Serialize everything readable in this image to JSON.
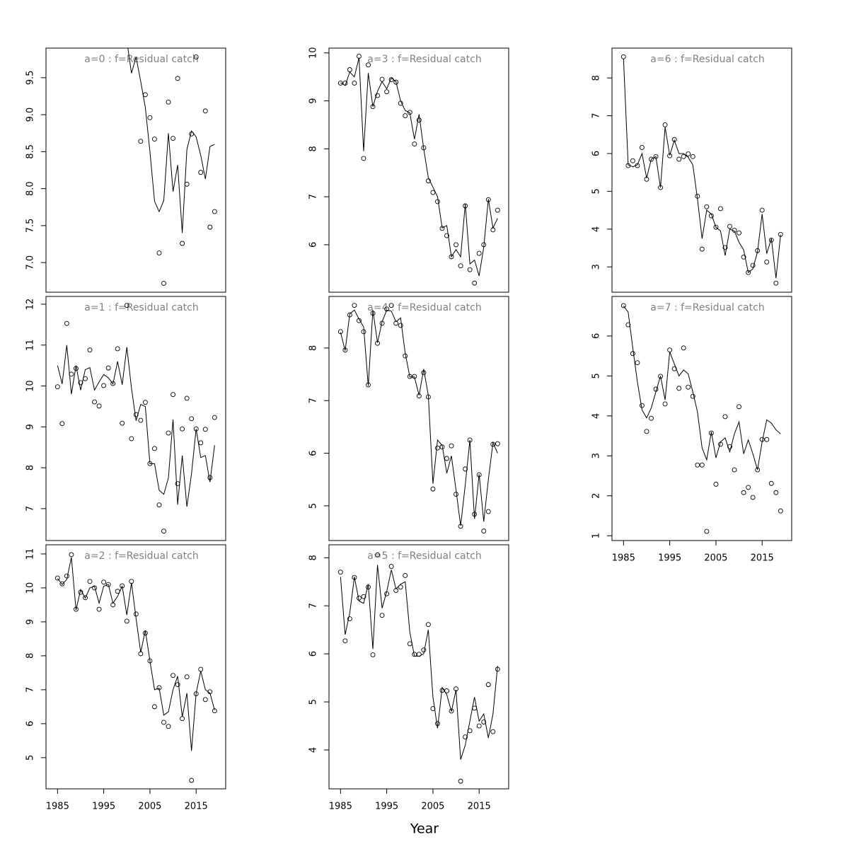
{
  "xlabel": "Year",
  "chart_data": [
    {
      "type": "line",
      "title": "a=0  :  f=Residual catch",
      "xlim": [
        1982.5,
        2021.4
      ],
      "ylim": [
        6.6,
        9.9
      ],
      "yticks": [
        {
          "value": 7,
          "label": "7.0"
        },
        {
          "value": 7.5,
          "label": "7.5"
        },
        {
          "value": 8,
          "label": "8.0"
        },
        {
          "value": 8.5,
          "label": "8.5"
        },
        {
          "value": 9,
          "label": "9.0"
        },
        {
          "value": 9.5,
          "label": "9.5"
        }
      ],
      "x": [
        1985,
        1986,
        1987,
        1988,
        1989,
        1990,
        1991,
        1992,
        1993,
        1994,
        1995,
        1996,
        1997,
        1998,
        1999,
        2000,
        2001,
        2002,
        2003,
        2004,
        2005,
        2006,
        2007,
        2008,
        2009,
        2010,
        2011,
        2012,
        2013,
        2014,
        2015,
        2016,
        2017,
        2018,
        2019
      ],
      "series": [
        {
          "type": "points",
          "color": "#000000",
          "values": [
            null,
            null,
            null,
            null,
            null,
            null,
            null,
            null,
            null,
            null,
            null,
            null,
            null,
            null,
            null,
            null,
            null,
            null,
            8.64,
            9.27,
            8.96,
            8.67,
            7.13,
            6.72,
            9.17,
            8.68,
            9.49,
            7.26,
            8.06,
            8.74,
            9.78,
            8.22,
            9.05,
            7.48,
            7.69
          ]
        },
        {
          "type": "line",
          "color": "#000000",
          "values": [
            null,
            null,
            null,
            null,
            null,
            null,
            null,
            null,
            null,
            null,
            null,
            null,
            null,
            null,
            null,
            10.0,
            9.56,
            9.78,
            9.45,
            9.1,
            8.5,
            7.83,
            7.69,
            7.84,
            8.75,
            7.96,
            8.32,
            7.4,
            8.53,
            8.78,
            8.7,
            8.45,
            8.13,
            8.57,
            8.6
          ]
        }
      ]
    },
    {
      "type": "line",
      "title": "a=1  :  f=Residual catch",
      "xlim": [
        1982.5,
        2021.4
      ],
      "ylim": [
        6.22,
        12.19
      ],
      "yticks": [
        7,
        8,
        9,
        10,
        11,
        12
      ],
      "x": [
        1985,
        1986,
        1987,
        1988,
        1989,
        1990,
        1991,
        1992,
        1993,
        1994,
        1995,
        1996,
        1997,
        1998,
        1999,
        2000,
        2001,
        2002,
        2003,
        2004,
        2005,
        2006,
        2007,
        2008,
        2009,
        2010,
        2011,
        2012,
        2013,
        2014,
        2015,
        2016,
        2017,
        2018,
        2019
      ],
      "series": [
        {
          "type": "points",
          "color": "#000000",
          "values": [
            9.98,
            9.08,
            11.53,
            10.29,
            10.43,
            10.08,
            10.18,
            10.88,
            9.61,
            9.51,
            10.01,
            10.44,
            10.06,
            10.91,
            9.09,
            11.97,
            8.71,
            9.3,
            9.16,
            9.6,
            8.1,
            8.47,
            7.09,
            6.45,
            8.85,
            9.79,
            7.61,
            8.95,
            9.7,
            9.2,
            8.95,
            8.61,
            8.94,
            7.76,
            9.23
          ]
        },
        {
          "type": "line",
          "color": "#000000",
          "values": [
            10.5,
            10.05,
            11.0,
            9.8,
            10.5,
            9.9,
            10.4,
            10.45,
            9.9,
            10.1,
            10.28,
            10.2,
            10.05,
            10.6,
            10.03,
            10.95,
            9.95,
            9.15,
            9.55,
            9.5,
            8.1,
            8.1,
            7.45,
            7.35,
            7.75,
            9.18,
            7.1,
            8.3,
            7.05,
            7.85,
            8.95,
            8.25,
            8.3,
            7.65,
            8.55
          ]
        }
      ]
    },
    {
      "type": "line",
      "title": "a=2  :  f=Residual catch",
      "xlim": [
        1982.5,
        2021.4
      ],
      "ylim": [
        4.08,
        11.27
      ],
      "yticks": [
        5,
        6,
        7,
        8,
        9,
        10,
        11
      ],
      "xticks": [
        1985,
        1995,
        2005,
        2015
      ],
      "x": [
        1985,
        1986,
        1987,
        1988,
        1989,
        1990,
        1991,
        1992,
        1993,
        1994,
        1995,
        1996,
        1997,
        1998,
        1999,
        2000,
        2001,
        2002,
        2003,
        2004,
        2005,
        2006,
        2007,
        2008,
        2009,
        2010,
        2011,
        2012,
        2013,
        2014,
        2015,
        2016,
        2017,
        2018,
        2019
      ],
      "series": [
        {
          "type": "points",
          "color": "#000000",
          "values": [
            10.29,
            10.12,
            10.35,
            10.98,
            9.37,
            9.87,
            9.71,
            10.19,
            10.0,
            9.37,
            10.17,
            10.1,
            9.5,
            9.9,
            10.06,
            9.02,
            10.19,
            9.23,
            8.06,
            8.67,
            7.85,
            6.5,
            7.06,
            6.04,
            5.92,
            7.42,
            7.15,
            6.15,
            7.38,
            4.33,
            6.88,
            7.6,
            6.71,
            6.94,
            6.38
          ]
        },
        {
          "type": "line",
          "color": "#000000",
          "values": [
            10.28,
            10.1,
            10.25,
            10.9,
            9.35,
            9.95,
            9.7,
            10.0,
            10.05,
            9.55,
            10.05,
            10.1,
            9.55,
            9.75,
            10.05,
            9.2,
            10.15,
            9.1,
            8.1,
            8.75,
            7.85,
            7.0,
            7.05,
            6.25,
            6.35,
            7.0,
            7.4,
            6.2,
            6.9,
            5.2,
            6.9,
            7.55,
            7.0,
            6.9,
            6.4
          ]
        }
      ]
    },
    {
      "type": "line",
      "title": "a=3  :  f=Residual catch",
      "xlim": [
        1982.5,
        2021.4
      ],
      "ylim": [
        5.01,
        10.1
      ],
      "yticks": [
        6,
        7,
        8,
        9,
        10
      ],
      "x": [
        1985,
        1986,
        1987,
        1988,
        1989,
        1990,
        1991,
        1992,
        1993,
        1994,
        1995,
        1996,
        1997,
        1998,
        1999,
        2000,
        2001,
        2002,
        2003,
        2004,
        2005,
        2006,
        2007,
        2008,
        2009,
        2010,
        2011,
        2012,
        2013,
        2014,
        2015,
        2016,
        2017,
        2018,
        2019
      ],
      "series": [
        {
          "type": "points",
          "color": "#000000",
          "values": [
            9.37,
            9.37,
            9.65,
            9.37,
            9.93,
            7.8,
            9.75,
            8.88,
            9.11,
            9.45,
            9.19,
            9.44,
            9.39,
            8.95,
            8.69,
            8.76,
            8.1,
            8.6,
            8.02,
            7.33,
            7.09,
            6.9,
            6.34,
            6.19,
            5.75,
            6.0,
            5.56,
            6.81,
            5.48,
            5.2,
            5.82,
            6.0,
            6.94,
            6.31,
            6.72
          ]
        },
        {
          "type": "line",
          "color": "#000000",
          "values": [
            9.38,
            9.32,
            9.6,
            9.5,
            9.9,
            7.95,
            9.58,
            8.88,
            9.2,
            9.4,
            9.25,
            9.48,
            9.4,
            9.0,
            8.8,
            8.75,
            8.2,
            8.72,
            8.0,
            7.4,
            7.2,
            7.0,
            6.35,
            6.4,
            5.75,
            5.9,
            5.75,
            6.85,
            5.6,
            5.68,
            5.35,
            5.95,
            6.95,
            6.35,
            6.55
          ]
        }
      ]
    },
    {
      "type": "line",
      "title": "a=4  :  f=Residual catch",
      "xlim": [
        1982.5,
        2021.4
      ],
      "ylim": [
        4.34,
        8.98
      ],
      "yticks": [
        5,
        6,
        7,
        8
      ],
      "x": [
        1985,
        1986,
        1987,
        1988,
        1989,
        1990,
        1991,
        1992,
        1993,
        1994,
        1995,
        1996,
        1997,
        1998,
        1999,
        2000,
        2001,
        2002,
        2003,
        2004,
        2005,
        2006,
        2007,
        2008,
        2009,
        2010,
        2011,
        2012,
        2013,
        2014,
        2015,
        2016,
        2017,
        2018,
        2019
      ],
      "series": [
        {
          "type": "points",
          "color": "#000000",
          "values": [
            8.31,
            7.96,
            8.63,
            8.81,
            8.52,
            8.31,
            7.3,
            8.66,
            8.09,
            8.47,
            8.74,
            8.81,
            8.47,
            8.43,
            7.85,
            7.46,
            7.46,
            7.09,
            7.53,
            7.07,
            5.32,
            6.1,
            6.12,
            5.9,
            6.14,
            5.22,
            4.61,
            5.7,
            6.25,
            4.84,
            5.59,
            4.52,
            4.89,
            6.17,
            6.18
          ]
        },
        {
          "type": "line",
          "color": "#000000",
          "values": [
            8.3,
            7.95,
            8.65,
            8.72,
            8.55,
            8.4,
            7.28,
            8.72,
            8.1,
            8.5,
            8.72,
            8.7,
            8.5,
            8.57,
            7.9,
            7.45,
            7.45,
            7.1,
            7.6,
            7.1,
            5.42,
            6.25,
            6.15,
            5.62,
            5.95,
            5.3,
            4.62,
            5.4,
            6.25,
            4.75,
            5.6,
            4.7,
            5.5,
            6.2,
            6.0
          ]
        }
      ]
    },
    {
      "type": "line",
      "title": "a=5  :  f=Residual catch",
      "xlim": [
        1982.5,
        2021.4
      ],
      "ylim": [
        3.19,
        8.27
      ],
      "yticks": [
        4,
        5,
        6,
        7,
        8
      ],
      "xticks": [
        1985,
        1995,
        2005,
        2015
      ],
      "x": [
        1985,
        1986,
        1987,
        1988,
        1989,
        1990,
        1991,
        1992,
        1993,
        1994,
        1995,
        1996,
        1997,
        1998,
        1999,
        2000,
        2001,
        2002,
        2003,
        2004,
        2005,
        2006,
        2007,
        2008,
        2009,
        2010,
        2011,
        2012,
        2013,
        2014,
        2015,
        2016,
        2017,
        2018,
        2019
      ],
      "series": [
        {
          "type": "points",
          "color": "#000000",
          "values": [
            7.7,
            6.27,
            6.73,
            7.59,
            7.16,
            7.19,
            7.39,
            5.98,
            8.06,
            6.8,
            7.25,
            7.82,
            7.32,
            7.39,
            7.63,
            6.21,
            5.99,
            5.99,
            6.08,
            6.61,
            4.86,
            4.55,
            5.24,
            5.23,
            4.81,
            5.27,
            3.35,
            4.27,
            4.4,
            4.87,
            4.5,
            4.58,
            5.36,
            4.38,
            5.68
          ]
        },
        {
          "type": "line",
          "color": "#000000",
          "values": [
            7.6,
            6.4,
            6.85,
            7.6,
            7.1,
            7.05,
            7.45,
            6.1,
            7.85,
            6.95,
            7.3,
            7.75,
            7.35,
            7.45,
            7.5,
            6.45,
            5.95,
            5.95,
            6.0,
            6.5,
            5.1,
            4.45,
            5.3,
            5.15,
            4.8,
            5.25,
            3.8,
            4.1,
            4.6,
            5.1,
            4.6,
            4.75,
            4.25,
            4.75,
            5.75
          ]
        }
      ]
    },
    {
      "type": "line",
      "title": "a=6  :  f=Residual catch",
      "xlim": [
        1982.5,
        2021.4
      ],
      "ylim": [
        2.33,
        8.79
      ],
      "yticks": [
        3,
        4,
        5,
        6,
        7,
        8
      ],
      "x": [
        1985,
        1986,
        1987,
        1988,
        1989,
        1990,
        1991,
        1992,
        1993,
        1994,
        1995,
        1996,
        1997,
        1998,
        1999,
        2000,
        2001,
        2002,
        2003,
        2004,
        2005,
        2006,
        2007,
        2008,
        2009,
        2010,
        2011,
        2012,
        2013,
        2014,
        2015,
        2016,
        2017,
        2018,
        2019
      ],
      "series": [
        {
          "type": "points",
          "color": "#000000",
          "values": [
            8.56,
            5.68,
            5.81,
            5.68,
            6.16,
            5.32,
            5.85,
            5.92,
            5.1,
            6.76,
            5.94,
            6.37,
            5.85,
            5.92,
            5.99,
            5.92,
            4.87,
            3.47,
            4.59,
            4.35,
            4.05,
            4.54,
            3.51,
            4.07,
            3.97,
            3.9,
            3.26,
            2.85,
            3.04,
            3.43,
            4.5,
            3.13,
            3.71,
            2.57,
            3.86
          ]
        },
        {
          "type": "line",
          "color": "#000000",
          "values": [
            8.5,
            5.7,
            5.65,
            5.7,
            6.0,
            5.35,
            5.85,
            5.92,
            5.1,
            6.7,
            5.95,
            6.35,
            6.0,
            6.0,
            5.9,
            5.7,
            4.8,
            3.75,
            4.5,
            4.4,
            4.05,
            3.95,
            3.3,
            4.0,
            3.95,
            3.65,
            3.45,
            2.85,
            2.95,
            3.4,
            4.4,
            3.35,
            3.75,
            2.7,
            3.85
          ]
        }
      ]
    },
    {
      "type": "line",
      "title": "a=7  :  f=Residual catch",
      "xlim": [
        1982.5,
        2021.4
      ],
      "ylim": [
        0.88,
        6.99
      ],
      "yticks": [
        1,
        2,
        3,
        4,
        5,
        6
      ],
      "xticks": [
        1985,
        1995,
        2005,
        2015
      ],
      "x": [
        1985,
        1986,
        1987,
        1988,
        1989,
        1990,
        1991,
        1992,
        1993,
        1994,
        1995,
        1996,
        1997,
        1998,
        1999,
        2000,
        2001,
        2002,
        2003,
        2004,
        2005,
        2006,
        2007,
        2008,
        2009,
        2010,
        2011,
        2012,
        2013,
        2014,
        2015,
        2016,
        2017,
        2018,
        2019
      ],
      "series": [
        {
          "type": "points",
          "color": "#000000",
          "values": [
            6.76,
            6.28,
            5.56,
            5.33,
            4.26,
            3.61,
            3.94,
            4.67,
            4.99,
            4.3,
            5.65,
            5.18,
            4.69,
            5.7,
            4.72,
            4.49,
            2.77,
            2.77,
            1.11,
            3.57,
            2.29,
            3.29,
            3.98,
            3.23,
            2.65,
            4.23,
            2.08,
            2.21,
            1.96,
            2.65,
            3.41,
            3.41,
            2.31,
            2.08,
            1.62
          ]
        },
        {
          "type": "line",
          "color": "#000000",
          "values": [
            6.75,
            6.6,
            5.7,
            4.85,
            4.15,
            3.95,
            4.2,
            4.6,
            5.0,
            4.4,
            5.6,
            5.3,
            5.0,
            5.15,
            5.05,
            4.6,
            4.1,
            3.2,
            2.9,
            3.6,
            2.95,
            3.35,
            3.45,
            3.1,
            3.55,
            3.85,
            3.05,
            3.4,
            3.05,
            2.65,
            3.35,
            3.9,
            3.82,
            3.65,
            3.55
          ]
        }
      ]
    }
  ]
}
